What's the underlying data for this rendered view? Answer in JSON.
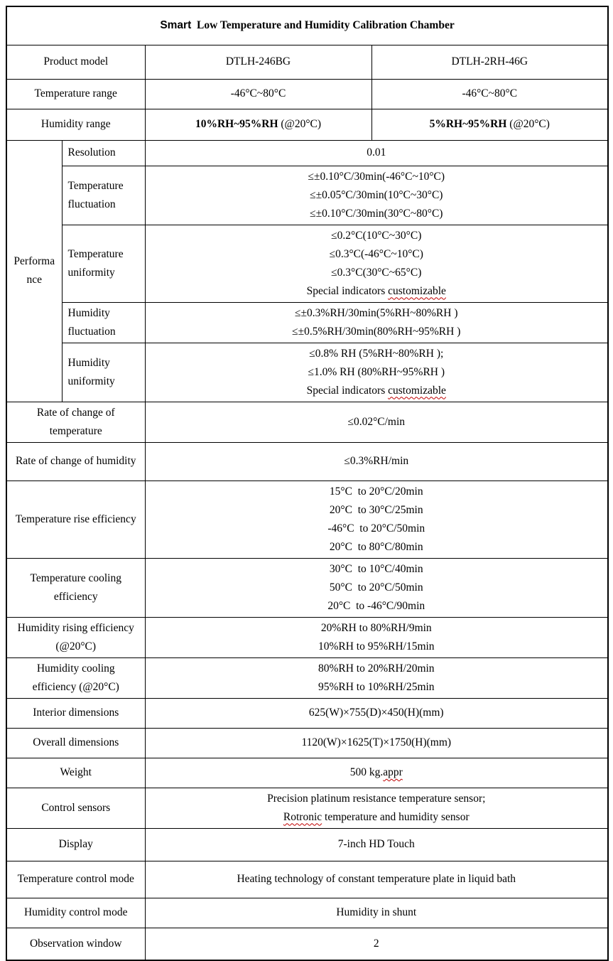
{
  "colors": {
    "border": "#000000",
    "text": "#000000",
    "spellcheck_squiggle": "#c00000",
    "background": "#ffffff"
  },
  "table": {
    "rows": [
      {
        "id": "title",
        "kind": "title",
        "parts": [
          {
            "t": "Smart",
            "s": "brand"
          },
          {
            "t": "  Low Temperature and Humidity Calibration Chamber"
          }
        ]
      },
      {
        "id": "product_model",
        "kind": "pair",
        "label": "Product model",
        "values": [
          [
            {
              "t": "DTLH-246BG"
            }
          ],
          [
            {
              "t": "DTLH-2RH-46G"
            }
          ]
        ]
      },
      {
        "id": "temperature_range",
        "kind": "pair",
        "label": "Temperature range",
        "values": [
          [
            {
              "t": "-46°C~80°C"
            }
          ],
          [
            {
              "t": "-46°C~80°C"
            }
          ]
        ]
      },
      {
        "id": "humidity_range",
        "kind": "pair",
        "label": "Humidity range",
        "values": [
          [
            {
              "t": "10%RH~95%RH",
              "s": "b"
            },
            {
              "t": " (@20°C)"
            }
          ],
          [
            {
              "t": "5%RH~95%RH",
              "s": "b"
            },
            {
              "t": " (@20°C)"
            }
          ]
        ]
      },
      {
        "id": "performance",
        "kind": "group",
        "label": "Performance",
        "subrows": [
          {
            "id": "resolution",
            "label": "Resolution",
            "lines": [
              [
                {
                  "t": "0.01"
                }
              ]
            ]
          },
          {
            "id": "temperature_fluctuation",
            "label": "Temperature fluctuation",
            "lines": [
              [
                {
                  "t": "≤±0.10°C/30min(-46°C~10°C)"
                }
              ],
              [
                {
                  "t": "≤±0.05°C/30min(10°C~30°C)"
                }
              ],
              [
                {
                  "t": "≤±0.10°C/30min(30°C~80°C)"
                }
              ]
            ]
          },
          {
            "id": "temperature_uniformity",
            "label": "Temperature uniformity",
            "lines": [
              [
                {
                  "t": "≤0.2°C(10°C~30°C)"
                }
              ],
              [
                {
                  "t": "≤0.3°C(-46°C~10°C)"
                }
              ],
              [
                {
                  "t": "≤0.3°C(30°C~65°C)"
                }
              ],
              [
                {
                  "t": "Special indicators "
                },
                {
                  "t": "customizable",
                  "s": "sq"
                }
              ]
            ]
          },
          {
            "id": "humidity_fluctuation",
            "label": "Humidity fluctuation",
            "lines": [
              [
                {
                  "t": "≤±0.3%RH/30min(5%RH~80%RH )"
                }
              ],
              [
                {
                  "t": "≤±0.5%RH/30min(80%RH~95%RH )"
                }
              ]
            ]
          },
          {
            "id": "humidity_uniformity",
            "label": "Humidity uniformity",
            "lines": [
              [
                {
                  "t": "≤0.8% RH (5%RH~80%RH );"
                }
              ],
              [
                {
                  "t": "≤1.0% RH (80%RH~95%RH )"
                }
              ],
              [
                {
                  "t": "Special indicators "
                },
                {
                  "t": "customizable",
                  "s": "sq"
                }
              ]
            ]
          }
        ]
      },
      {
        "id": "rate_temp",
        "kind": "simple",
        "label": "Rate of change of temperature",
        "lines": [
          [
            {
              "t": "≤0.02°C/min"
            }
          ]
        ]
      },
      {
        "id": "rate_humidity",
        "kind": "simple",
        "label": "Rate of change of humidity",
        "lines": [
          [
            {
              "t": "≤0.3%RH/min"
            }
          ]
        ]
      },
      {
        "id": "temp_rise",
        "kind": "simple",
        "label": "Temperature rise efficiency",
        "lines": [
          [
            {
              "t": "15°C  to 20°C/20min"
            }
          ],
          [
            {
              "t": "20°C  to 30°C/25min"
            }
          ],
          [
            {
              "t": "-46°C  to 20°C/50min"
            }
          ],
          [
            {
              "t": "20°C  to 80°C/80min"
            }
          ]
        ]
      },
      {
        "id": "temp_cooling",
        "kind": "simple",
        "label": "Temperature cooling efficiency",
        "lines": [
          [
            {
              "t": "30°C  to 10°C/40min"
            }
          ],
          [
            {
              "t": "50°C  to 20°C/50min"
            }
          ],
          [
            {
              "t": "20°C  to -46°C/90min"
            }
          ]
        ]
      },
      {
        "id": "humidity_rising",
        "kind": "simple",
        "label": "Humidity rising efficiency (@20°C)",
        "lines": [
          [
            {
              "t": "20%RH to 80%RH/9min"
            }
          ],
          [
            {
              "t": "10%RH to 95%RH/15min"
            }
          ]
        ]
      },
      {
        "id": "humidity_cooling",
        "kind": "simple",
        "label": "Humidity cooling efficiency (@20°C)",
        "lines": [
          [
            {
              "t": "80%RH to 20%RH/20min"
            }
          ],
          [
            {
              "t": "95%RH to 10%RH/25min"
            }
          ]
        ]
      },
      {
        "id": "interior_dimensions",
        "kind": "simple",
        "label": "Interior dimensions",
        "lines": [
          [
            {
              "t": "625(W)×755(D)×450(H)(mm)"
            }
          ]
        ]
      },
      {
        "id": "overall_dimensions",
        "kind": "simple",
        "label": "Overall dimensions",
        "lines": [
          [
            {
              "t": "1120(W)×1625(T)×1750(H)(mm)"
            }
          ]
        ]
      },
      {
        "id": "weight",
        "kind": "simple",
        "label": "Weight",
        "lines": [
          [
            {
              "t": "500 kg."
            },
            {
              "t": "appr",
              "s": "sq"
            }
          ]
        ]
      },
      {
        "id": "control_sensors",
        "kind": "simple",
        "label": "Control sensors",
        "lines": [
          [
            {
              "t": "Precision platinum resistance temperature sensor;"
            }
          ],
          [
            {
              "t": "Rotronic",
              "s": "sq"
            },
            {
              "t": " temperature and humidity sensor"
            }
          ]
        ]
      },
      {
        "id": "display",
        "kind": "simple",
        "label": "Display",
        "lines": [
          [
            {
              "t": "7-inch HD Touch"
            }
          ]
        ]
      },
      {
        "id": "temp_control_mode",
        "kind": "simple",
        "label": "Temperature control mode",
        "lines": [
          [
            {
              "t": "Heating technology of constant temperature plate in liquid bath"
            }
          ]
        ]
      },
      {
        "id": "humidity_control_mode",
        "kind": "simple",
        "label": "Humidity control mode",
        "lines": [
          [
            {
              "t": "Humidity in shunt"
            }
          ]
        ]
      },
      {
        "id": "observation_window",
        "kind": "simple",
        "label": "Observation window",
        "lines": [
          [
            {
              "t": "2"
            }
          ]
        ]
      }
    ]
  }
}
